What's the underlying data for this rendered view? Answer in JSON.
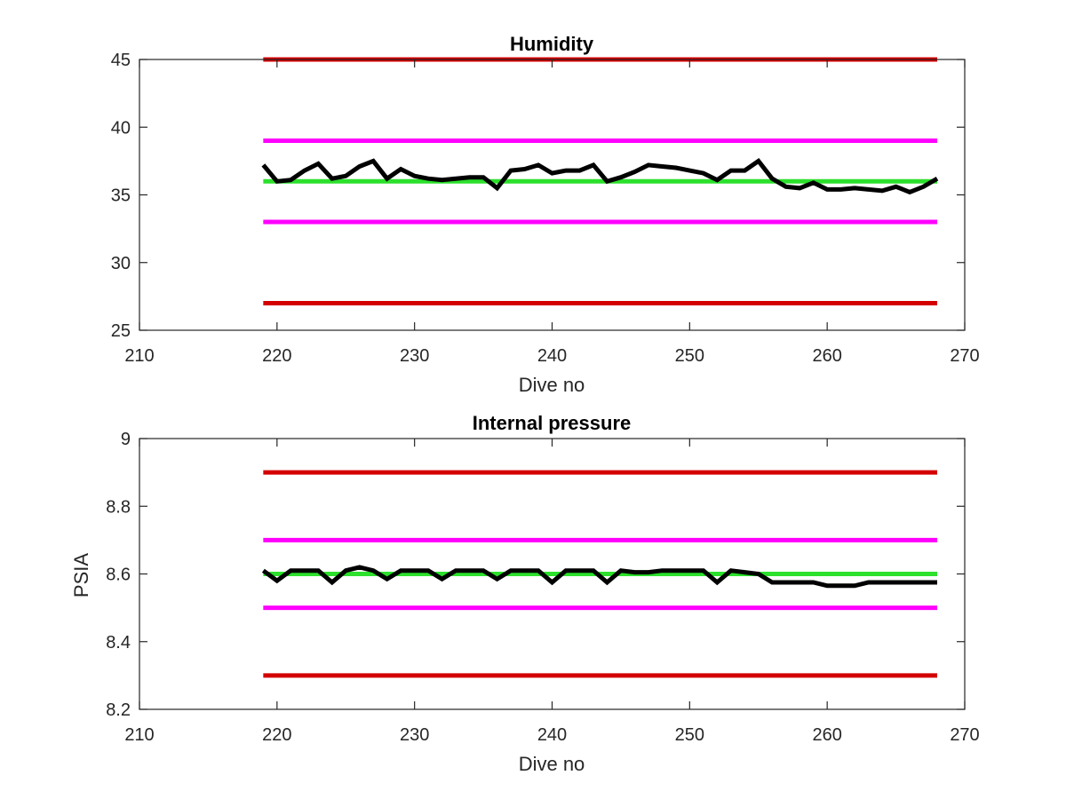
{
  "colors": {
    "background": "#ffffff",
    "axes": "#262626",
    "outer_limit": "#d40000",
    "inner_limit": "#ff00ff",
    "nominal": "#2ce02c",
    "measured": "#000000"
  },
  "chart_data": [
    {
      "type": "line",
      "title": "Humidity",
      "xlabel": "Dive no",
      "ylabel": "",
      "xlim": [
        210,
        270
      ],
      "ylim": [
        25,
        45
      ],
      "xticks": [
        210,
        220,
        230,
        240,
        250,
        260,
        270
      ],
      "yticks": [
        25,
        30,
        35,
        40,
        45
      ],
      "grid": false,
      "legend": "none",
      "reference_lines": [
        {
          "role": "upper-outer-limit",
          "x": [
            219,
            268
          ],
          "y": 45,
          "color": "#d40000"
        },
        {
          "role": "upper-inner-limit",
          "x": [
            219,
            268
          ],
          "y": 39,
          "color": "#ff00ff"
        },
        {
          "role": "nominal",
          "x": [
            219,
            268
          ],
          "y": 36,
          "color": "#2ce02c"
        },
        {
          "role": "lower-inner-limit",
          "x": [
            219,
            268
          ],
          "y": 33,
          "color": "#ff00ff"
        },
        {
          "role": "lower-outer-limit",
          "x": [
            219,
            268
          ],
          "y": 27,
          "color": "#d40000"
        }
      ],
      "series": [
        {
          "color": "#000000",
          "x": [
            219,
            220,
            221,
            222,
            223,
            224,
            225,
            226,
            227,
            228,
            229,
            230,
            231,
            232,
            233,
            234,
            235,
            236,
            237,
            238,
            239,
            240,
            241,
            242,
            243,
            244,
            245,
            246,
            247,
            248,
            249,
            250,
            251,
            252,
            253,
            254,
            255,
            256,
            257,
            258,
            259,
            260,
            261,
            262,
            263,
            264,
            265,
            266,
            267,
            268
          ],
          "y": [
            37.2,
            36.0,
            36.1,
            36.8,
            37.3,
            36.2,
            36.4,
            37.1,
            37.5,
            36.2,
            36.9,
            36.4,
            36.2,
            36.1,
            36.2,
            36.3,
            36.3,
            35.5,
            36.8,
            36.9,
            37.2,
            36.6,
            36.8,
            36.8,
            37.2,
            36.0,
            36.3,
            36.7,
            37.2,
            37.1,
            37.0,
            36.8,
            36.6,
            36.1,
            36.8,
            36.8,
            37.5,
            36.2,
            35.6,
            35.5,
            35.9,
            35.4,
            35.4,
            35.5,
            35.4,
            35.3,
            35.6,
            35.2,
            35.6,
            36.2
          ]
        }
      ]
    },
    {
      "type": "line",
      "title": "Internal pressure",
      "xlabel": "Dive no",
      "ylabel": "PSIA",
      "xlim": [
        210,
        270
      ],
      "ylim": [
        8.2,
        9.0
      ],
      "xticks": [
        210,
        220,
        230,
        240,
        250,
        260,
        270
      ],
      "yticks": [
        8.2,
        8.4,
        8.6,
        8.8,
        9.0
      ],
      "ytick_labels": [
        "8.2",
        "8.4",
        "8.6",
        "8.8",
        "9"
      ],
      "grid": false,
      "legend": "none",
      "reference_lines": [
        {
          "role": "upper-outer-limit",
          "x": [
            219,
            268
          ],
          "y": 8.9,
          "color": "#d40000"
        },
        {
          "role": "upper-inner-limit",
          "x": [
            219,
            268
          ],
          "y": 8.7,
          "color": "#ff00ff"
        },
        {
          "role": "nominal",
          "x": [
            219,
            268
          ],
          "y": 8.6,
          "color": "#2ce02c"
        },
        {
          "role": "lower-inner-limit",
          "x": [
            219,
            268
          ],
          "y": 8.5,
          "color": "#ff00ff"
        },
        {
          "role": "lower-outer-limit",
          "x": [
            219,
            268
          ],
          "y": 8.3,
          "color": "#d40000"
        }
      ],
      "series": [
        {
          "color": "#000000",
          "x": [
            219,
            220,
            221,
            222,
            223,
            224,
            225,
            226,
            227,
            228,
            229,
            230,
            231,
            232,
            233,
            234,
            235,
            236,
            237,
            238,
            239,
            240,
            241,
            242,
            243,
            244,
            245,
            246,
            247,
            248,
            249,
            250,
            251,
            252,
            253,
            254,
            255,
            256,
            257,
            258,
            259,
            260,
            261,
            262,
            263,
            264,
            265,
            266,
            267,
            268
          ],
          "y": [
            8.61,
            8.58,
            8.61,
            8.61,
            8.61,
            8.575,
            8.61,
            8.62,
            8.61,
            8.585,
            8.61,
            8.61,
            8.61,
            8.585,
            8.61,
            8.61,
            8.61,
            8.585,
            8.61,
            8.61,
            8.61,
            8.575,
            8.61,
            8.61,
            8.61,
            8.575,
            8.61,
            8.605,
            8.605,
            8.61,
            8.61,
            8.61,
            8.61,
            8.575,
            8.61,
            8.605,
            8.6,
            8.575,
            8.575,
            8.575,
            8.575,
            8.565,
            8.565,
            8.565,
            8.575,
            8.575,
            8.575,
            8.575,
            8.575,
            8.575
          ]
        }
      ]
    }
  ]
}
